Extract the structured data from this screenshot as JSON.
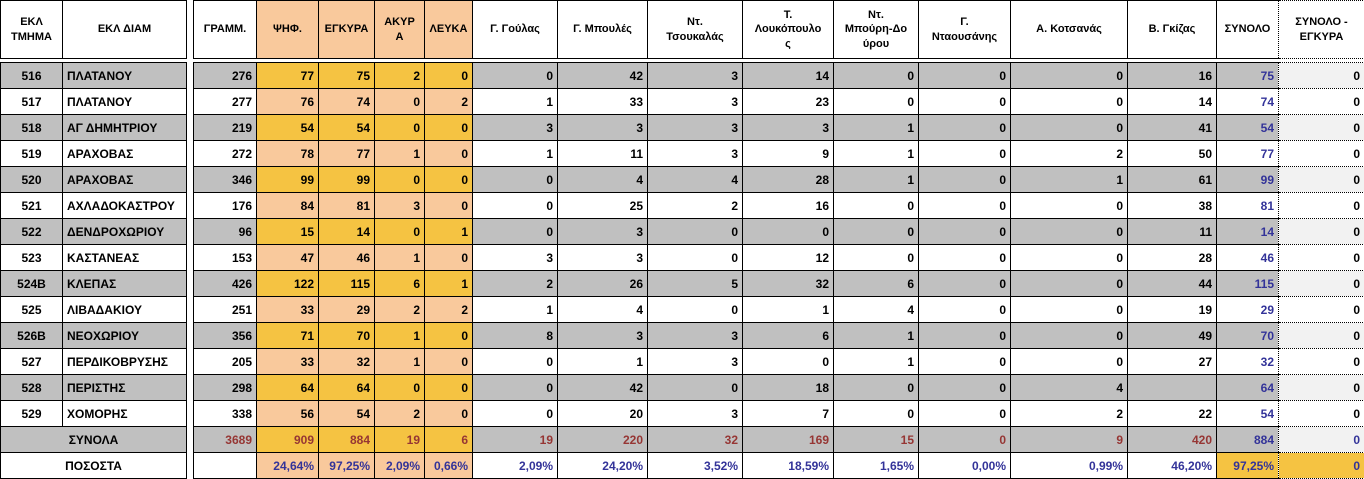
{
  "colors": {
    "row_gray": "#C0C0C0",
    "vote_gold": "#F5C342",
    "vote_peach": "#F9C99C",
    "diff_light_gray": "#F2F2F2",
    "total_navy": "#333399",
    "total_dark_red": "#963634",
    "grid_black": "#000000"
  },
  "table": {
    "columns": [
      {
        "key": "tmima",
        "label": "ΕΚΛ\nΤΜΗΜΑ"
      },
      {
        "key": "diam",
        "label": "ΕΚΛ ΔΙΑΜ"
      },
      {
        "key": "spacer",
        "label": ""
      },
      {
        "key": "gramm",
        "label": "ΓΡΑΜΜ."
      },
      {
        "key": "psif",
        "label": "ΨΗΦ."
      },
      {
        "key": "egkyra",
        "label": "ΕΓΚΥΡΑ"
      },
      {
        "key": "akyra",
        "label": "ΑΚΥΡ\nΑ"
      },
      {
        "key": "leyka",
        "label": "ΛΕΥΚΑ"
      },
      {
        "key": "goulas",
        "label": "Γ. Γούλας"
      },
      {
        "key": "mpoules",
        "label": "Γ. Μπουλές"
      },
      {
        "key": "tsoukalas",
        "label": "Ντ.\nΤσουκαλάς"
      },
      {
        "key": "loukopoulos",
        "label": "Τ.\nΛουκόπουλο\nς"
      },
      {
        "key": "mpouri",
        "label": "Ντ.\nΜπούρη-Δο\nύρου"
      },
      {
        "key": "ntaousanis",
        "label": "Γ.\nΝταουσάνης"
      },
      {
        "key": "kotsanas",
        "label": "Α. Κοτσανάς"
      },
      {
        "key": "gkizas",
        "label": "Β. Γκίζας"
      },
      {
        "key": "synolo",
        "label": "ΣΥΝΟΛΟ"
      },
      {
        "key": "diff",
        "label": "ΣΥΝΟΛΟ -\nΕΓΚΥΡΑ"
      }
    ],
    "rows": [
      {
        "tmima": "516",
        "diam": "ΠΛΑΤΑΝΟΥ",
        "gramm": "276",
        "psif": "77",
        "egkyra": "75",
        "akyra": "2",
        "leyka": "0",
        "goulas": "0",
        "mpoules": "42",
        "tsoukalas": "3",
        "loukopoulos": "14",
        "mpouri": "0",
        "ntaousanis": "0",
        "kotsanas": "0",
        "gkizas": "16",
        "synolo": "75",
        "diff": "0"
      },
      {
        "tmima": "517",
        "diam": "ΠΛΑΤΑΝΟΥ",
        "gramm": "277",
        "psif": "76",
        "egkyra": "74",
        "akyra": "0",
        "leyka": "2",
        "goulas": "1",
        "mpoules": "33",
        "tsoukalas": "3",
        "loukopoulos": "23",
        "mpouri": "0",
        "ntaousanis": "0",
        "kotsanas": "0",
        "gkizas": "14",
        "synolo": "74",
        "diff": "0"
      },
      {
        "tmima": "518",
        "diam": "ΑΓ ΔΗΜΗΤΡΙΟΥ",
        "gramm": "219",
        "psif": "54",
        "egkyra": "54",
        "akyra": "0",
        "leyka": "0",
        "goulas": "3",
        "mpoules": "3",
        "tsoukalas": "3",
        "loukopoulos": "3",
        "mpouri": "1",
        "ntaousanis": "0",
        "kotsanas": "0",
        "gkizas": "41",
        "synolo": "54",
        "diff": "0"
      },
      {
        "tmima": "519",
        "diam": "ΑΡΑΧΟΒΑΣ",
        "gramm": "272",
        "psif": "78",
        "egkyra": "77",
        "akyra": "1",
        "leyka": "0",
        "goulas": "1",
        "mpoules": "11",
        "tsoukalas": "3",
        "loukopoulos": "9",
        "mpouri": "1",
        "ntaousanis": "0",
        "kotsanas": "2",
        "gkizas": "50",
        "synolo": "77",
        "diff": "0"
      },
      {
        "tmima": "520",
        "diam": "ΑΡΑΧΟΒΑΣ",
        "gramm": "346",
        "psif": "99",
        "egkyra": "99",
        "akyra": "0",
        "leyka": "0",
        "goulas": "0",
        "mpoules": "4",
        "tsoukalas": "4",
        "loukopoulos": "28",
        "mpouri": "1",
        "ntaousanis": "0",
        "kotsanas": "1",
        "gkizas": "61",
        "synolo": "99",
        "diff": "0"
      },
      {
        "tmima": "521",
        "diam": "ΑΧΛΑΔΟΚΑΣΤΡΟΥ",
        "gramm": "176",
        "psif": "84",
        "egkyra": "81",
        "akyra": "3",
        "leyka": "0",
        "goulas": "0",
        "mpoules": "25",
        "tsoukalas": "2",
        "loukopoulos": "16",
        "mpouri": "0",
        "ntaousanis": "0",
        "kotsanas": "0",
        "gkizas": "38",
        "synolo": "81",
        "diff": "0"
      },
      {
        "tmima": "522",
        "diam": "ΔΕΝΔΡΟΧΩΡΙΟΥ",
        "gramm": "96",
        "psif": "15",
        "egkyra": "14",
        "akyra": "0",
        "leyka": "1",
        "goulas": "0",
        "mpoules": "3",
        "tsoukalas": "0",
        "loukopoulos": "0",
        "mpouri": "0",
        "ntaousanis": "0",
        "kotsanas": "0",
        "gkizas": "11",
        "synolo": "14",
        "diff": "0"
      },
      {
        "tmima": "523",
        "diam": "ΚΑΣΤΑΝΕΑΣ",
        "gramm": "153",
        "psif": "47",
        "egkyra": "46",
        "akyra": "1",
        "leyka": "0",
        "goulas": "3",
        "mpoules": "3",
        "tsoukalas": "0",
        "loukopoulos": "12",
        "mpouri": "0",
        "ntaousanis": "0",
        "kotsanas": "0",
        "gkizas": "28",
        "synolo": "46",
        "diff": "0"
      },
      {
        "tmima": "524Β",
        "diam": "ΚΛΕΠΑΣ",
        "gramm": "426",
        "psif": "122",
        "egkyra": "115",
        "akyra": "6",
        "leyka": "1",
        "goulas": "2",
        "mpoules": "26",
        "tsoukalas": "5",
        "loukopoulos": "32",
        "mpouri": "6",
        "ntaousanis": "0",
        "kotsanas": "0",
        "gkizas": "44",
        "synolo": "115",
        "diff": "0"
      },
      {
        "tmima": "525",
        "diam": "ΛΙΒΑΔΑΚΙΟΥ",
        "gramm": "251",
        "psif": "33",
        "egkyra": "29",
        "akyra": "2",
        "leyka": "2",
        "goulas": "1",
        "mpoules": "4",
        "tsoukalas": "0",
        "loukopoulos": "1",
        "mpouri": "4",
        "ntaousanis": "0",
        "kotsanas": "0",
        "gkizas": "19",
        "synolo": "29",
        "diff": "0"
      },
      {
        "tmima": "526Β",
        "diam": "ΝΕΟΧΩΡΙΟΥ",
        "gramm": "356",
        "psif": "71",
        "egkyra": "70",
        "akyra": "1",
        "leyka": "0",
        "goulas": "8",
        "mpoules": "3",
        "tsoukalas": "3",
        "loukopoulos": "6",
        "mpouri": "1",
        "ntaousanis": "0",
        "kotsanas": "0",
        "gkizas": "49",
        "synolo": "70",
        "diff": "0"
      },
      {
        "tmima": "527",
        "diam": "ΠΕΡΔΙΚΟΒΡΥΣΗΣ",
        "gramm": "205",
        "psif": "33",
        "egkyra": "32",
        "akyra": "1",
        "leyka": "0",
        "goulas": "0",
        "mpoules": "1",
        "tsoukalas": "3",
        "loukopoulos": "0",
        "mpouri": "1",
        "ntaousanis": "0",
        "kotsanas": "0",
        "gkizas": "27",
        "synolo": "32",
        "diff": "0"
      },
      {
        "tmima": "528",
        "diam": "ΠΕΡΙΣΤΗΣ",
        "gramm": "298",
        "psif": "64",
        "egkyra": "64",
        "akyra": "0",
        "leyka": "0",
        "goulas": "0",
        "mpoules": "42",
        "tsoukalas": "0",
        "loukopoulos": "18",
        "mpouri": "0",
        "ntaousanis": "0",
        "kotsanas": "4",
        "gkizas": "",
        "synolo": "64",
        "diff": "0"
      },
      {
        "tmima": "529",
        "diam": "ΧΟΜΟΡΗΣ",
        "gramm": "338",
        "psif": "56",
        "egkyra": "54",
        "akyra": "2",
        "leyka": "0",
        "goulas": "0",
        "mpoules": "20",
        "tsoukalas": "3",
        "loukopoulos": "7",
        "mpouri": "0",
        "ntaousanis": "0",
        "kotsanas": "2",
        "gkizas": "22",
        "synolo": "54",
        "diff": "0"
      }
    ],
    "totals": {
      "label": "ΣΥΝΟΛΑ",
      "gramm": "3689",
      "psif": "909",
      "egkyra": "884",
      "akyra": "19",
      "leyka": "6",
      "goulas": "19",
      "mpoules": "220",
      "tsoukalas": "32",
      "loukopoulos": "169",
      "mpouri": "15",
      "ntaousanis": "0",
      "kotsanas": "9",
      "gkizas": "420",
      "synolo": "884",
      "diff": "0"
    },
    "percents": {
      "label": "ΠΟΣΟΣΤΑ",
      "gramm": "",
      "psif": "24,64%",
      "egkyra": "97,25%",
      "akyra": "2,09%",
      "leyka": "0,66%",
      "goulas": "2,09%",
      "mpoules": "24,20%",
      "tsoukalas": "3,52%",
      "loukopoulos": "18,59%",
      "mpouri": "1,65%",
      "ntaousanis": "0,00%",
      "kotsanas": "0,99%",
      "gkizas": "46,20%",
      "synolo": "97,25%",
      "diff": "0"
    }
  }
}
